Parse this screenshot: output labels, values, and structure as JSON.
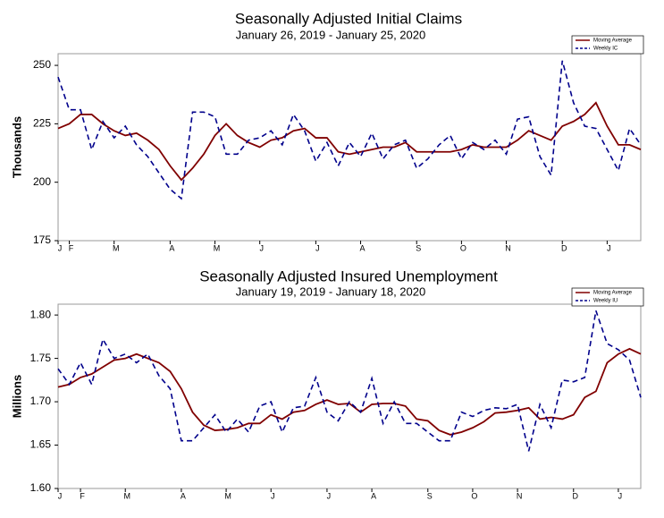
{
  "chart_data": [
    {
      "type": "line",
      "title": "Seasonally Adjusted Initial Claims",
      "subtitle": "January 26, 2019 - January 25, 2020",
      "y_label": "Thousands",
      "x": [
        0,
        1,
        2,
        3,
        4,
        5,
        6,
        7,
        8,
        9,
        10,
        11,
        12,
        13,
        14,
        15,
        16,
        17,
        18,
        19,
        20,
        21,
        22,
        23,
        24,
        25,
        26,
        27,
        28,
        29,
        30,
        31,
        32,
        33,
        34,
        35,
        36,
        37,
        38,
        39,
        40,
        41,
        42,
        43,
        44,
        45,
        46,
        47,
        48,
        49,
        50,
        51,
        52
      ],
      "xlim": [
        0,
        52
      ],
      "xticks": [
        {
          "value": 0,
          "label": "J"
        },
        {
          "value": 1,
          "label": "F"
        },
        {
          "value": 5,
          "label": "M"
        },
        {
          "value": 10,
          "label": "A"
        },
        {
          "value": 14,
          "label": "M"
        },
        {
          "value": 18,
          "label": "J"
        },
        {
          "value": 23,
          "label": "J"
        },
        {
          "value": 27,
          "label": "A"
        },
        {
          "value": 32,
          "label": "S"
        },
        {
          "value": 36,
          "label": "O"
        },
        {
          "value": 40,
          "label": "N"
        },
        {
          "value": 45,
          "label": "D"
        },
        {
          "value": 49,
          "label": "J"
        }
      ],
      "ylim": [
        175,
        255
      ],
      "yticks": [
        175,
        200,
        225,
        250
      ],
      "legend": "top-right",
      "series": [
        {
          "name": "Moving Average",
          "color": "#800000",
          "dashed": false,
          "values": [
            223,
            225,
            229,
            229,
            225,
            222,
            220,
            221,
            218,
            214,
            207,
            201,
            206,
            212,
            220,
            225,
            220,
            217,
            215,
            218,
            219,
            222,
            223,
            219,
            219,
            213,
            212,
            213,
            214,
            215,
            215,
            217,
            213,
            213,
            213,
            213,
            214,
            216,
            215,
            215,
            215,
            218,
            222,
            220,
            218,
            224,
            226,
            229,
            234,
            224,
            216,
            216,
            214
          ]
        },
        {
          "name": "Weekly IC",
          "color": "#00008b",
          "dashed": true,
          "values": [
            245,
            231,
            231,
            214,
            226,
            219,
            224,
            216,
            211,
            204,
            197,
            193,
            230,
            230,
            228,
            212,
            212,
            218,
            219,
            222,
            216,
            229,
            222,
            209,
            217,
            207,
            217,
            211,
            221,
            210,
            216,
            218,
            206,
            210,
            216,
            220,
            210,
            217,
            214,
            218,
            212,
            227,
            228,
            211,
            203,
            252,
            234,
            224,
            223,
            214,
            205,
            223,
            216
          ]
        }
      ]
    },
    {
      "type": "line",
      "title": "Seasonally Adjusted Insured Unemployment",
      "subtitle": "January 19, 2019 - January 18, 2020",
      "y_label": "Millions",
      "x": [
        0,
        1,
        2,
        3,
        4,
        5,
        6,
        7,
        8,
        9,
        10,
        11,
        12,
        13,
        14,
        15,
        16,
        17,
        18,
        19,
        20,
        21,
        22,
        23,
        24,
        25,
        26,
        27,
        28,
        29,
        30,
        31,
        32,
        33,
        34,
        35,
        36,
        37,
        38,
        39,
        40,
        41,
        42,
        43,
        44,
        45,
        46,
        47,
        48,
        49,
        50,
        51,
        52
      ],
      "xlim": [
        0,
        52
      ],
      "xticks": [
        {
          "value": 0,
          "label": "J"
        },
        {
          "value": 2,
          "label": "F"
        },
        {
          "value": 6,
          "label": "M"
        },
        {
          "value": 11,
          "label": "A"
        },
        {
          "value": 15,
          "label": "M"
        },
        {
          "value": 19,
          "label": "J"
        },
        {
          "value": 24,
          "label": "J"
        },
        {
          "value": 28,
          "label": "A"
        },
        {
          "value": 33,
          "label": "S"
        },
        {
          "value": 37,
          "label": "O"
        },
        {
          "value": 41,
          "label": "N"
        },
        {
          "value": 46,
          "label": "D"
        },
        {
          "value": 50,
          "label": "J"
        }
      ],
      "ylim": [
        1.6,
        1.8125
      ],
      "yticks": [
        {
          "value": 1.6,
          "label": "1.60"
        },
        {
          "value": 1.65,
          "label": "1.65"
        },
        {
          "value": 1.7,
          "label": "1.70"
        },
        {
          "value": 1.75,
          "label": "1.75"
        },
        {
          "value": 1.8,
          "label": "1.80"
        }
      ],
      "legend": "top-right",
      "series": [
        {
          "name": "Moving Average",
          "color": "#800000",
          "dashed": false,
          "values": [
            1.717,
            1.72,
            1.728,
            1.732,
            1.74,
            1.748,
            1.75,
            1.755,
            1.75,
            1.745,
            1.735,
            1.715,
            1.688,
            1.673,
            1.667,
            1.668,
            1.67,
            1.675,
            1.675,
            1.685,
            1.68,
            1.688,
            1.69,
            1.697,
            1.702,
            1.697,
            1.698,
            1.688,
            1.697,
            1.698,
            1.698,
            1.695,
            1.68,
            1.678,
            1.667,
            1.662,
            1.665,
            1.67,
            1.677,
            1.687,
            1.688,
            1.69,
            1.693,
            1.68,
            1.682,
            1.68,
            1.685,
            1.705,
            1.712,
            1.745,
            1.755,
            1.761,
            1.755
          ]
        },
        {
          "name": "Weekly IU",
          "color": "#00008b",
          "dashed": true,
          "values": [
            1.738,
            1.72,
            1.745,
            1.72,
            1.772,
            1.75,
            1.755,
            1.745,
            1.755,
            1.73,
            1.715,
            1.655,
            1.655,
            1.67,
            1.685,
            1.665,
            1.68,
            1.665,
            1.695,
            1.7,
            1.665,
            1.693,
            1.695,
            1.728,
            1.688,
            1.678,
            1.7,
            1.688,
            1.727,
            1.675,
            1.7,
            1.675,
            1.675,
            1.665,
            1.655,
            1.655,
            1.688,
            1.683,
            1.69,
            1.693,
            1.692,
            1.697,
            1.643,
            1.697,
            1.67,
            1.725,
            1.723,
            1.728,
            1.805,
            1.767,
            1.76,
            1.748,
            1.705
          ]
        }
      ]
    }
  ]
}
